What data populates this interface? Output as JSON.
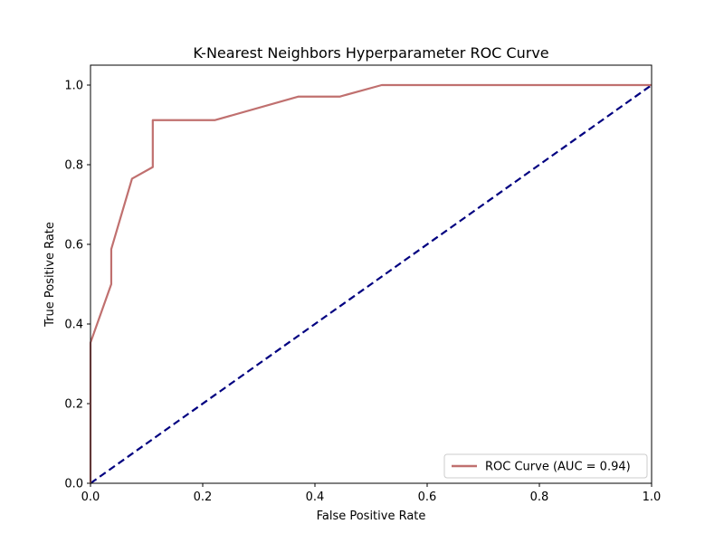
{
  "chart_data": {
    "type": "line",
    "title": "K-Nearest Neighbors Hyperparameter ROC Curve",
    "xlabel": "False Positive Rate",
    "ylabel": "True Positive Rate",
    "xlim": [
      0.0,
      1.0
    ],
    "ylim": [
      0.0,
      1.05
    ],
    "x_ticks": [
      "0.0",
      "0.2",
      "0.4",
      "0.6",
      "0.8",
      "1.0"
    ],
    "y_ticks": [
      "0.0",
      "0.2",
      "0.4",
      "0.6",
      "0.8",
      "1.0"
    ],
    "grid": false,
    "legend_position": "lower-right",
    "series": [
      {
        "name": "ROC Curve (AUC = 0.94)",
        "color": "#c0706f",
        "style": "solid",
        "x": [
          0.0,
          0.0,
          0.0,
          0.037,
          0.037,
          0.074,
          0.111,
          0.111,
          0.222,
          0.37,
          0.444,
          0.519,
          1.0
        ],
        "y": [
          0.0,
          0.353,
          0.353,
          0.5,
          0.588,
          0.765,
          0.794,
          0.912,
          0.912,
          0.971,
          0.971,
          1.0,
          1.0
        ]
      },
      {
        "color": "#000080",
        "style": "dashed",
        "x": [
          0.0,
          1.0
        ],
        "y": [
          0.0,
          1.0
        ]
      }
    ]
  }
}
